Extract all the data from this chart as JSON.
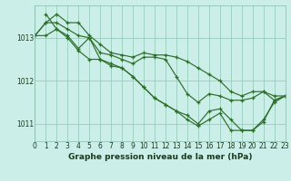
{
  "title": "Graphe pression niveau de la mer (hPa)",
  "bg_color": "#cceee8",
  "grid_color": "#99ccbb",
  "line_color": "#2d6e2d",
  "xlim": [
    0,
    23
  ],
  "ylim": [
    1010.6,
    1013.75
  ],
  "yticks": [
    1011,
    1012,
    1013
  ],
  "xticks": [
    0,
    1,
    2,
    3,
    4,
    5,
    6,
    7,
    8,
    9,
    10,
    11,
    12,
    13,
    14,
    15,
    16,
    17,
    18,
    19,
    20,
    21,
    22,
    23
  ],
  "lines": [
    {
      "x": [
        0,
        1,
        2,
        3,
        4,
        5,
        6,
        7,
        8,
        9,
        10,
        11,
        12,
        13,
        14,
        15,
        16,
        17,
        18,
        19,
        20,
        21,
        22,
        23
      ],
      "y": [
        1013.05,
        1013.35,
        1013.55,
        1013.35,
        1013.35,
        1013.05,
        1012.85,
        1012.65,
        1012.6,
        1012.55,
        1012.65,
        1012.6,
        1012.6,
        1012.55,
        1012.45,
        1012.3,
        1012.15,
        1012.0,
        1011.75,
        1011.65,
        1011.75,
        1011.75,
        1011.55,
        1011.65
      ]
    },
    {
      "x": [
        0,
        1,
        2,
        3,
        4,
        5,
        6,
        7,
        8,
        9,
        10,
        11,
        12,
        13,
        14,
        15,
        16,
        17,
        18,
        19,
        20,
        21,
        22,
        23
      ],
      "y": [
        1013.05,
        1013.35,
        1013.35,
        1013.2,
        1013.05,
        1013.0,
        1012.65,
        1012.6,
        1012.5,
        1012.4,
        1012.55,
        1012.55,
        1012.5,
        1012.1,
        1011.7,
        1011.5,
        1011.7,
        1011.65,
        1011.55,
        1011.55,
        1011.6,
        1011.75,
        1011.65,
        1011.65
      ]
    },
    {
      "x": [
        0,
        1,
        2,
        3,
        4,
        5,
        6,
        7,
        8,
        9,
        10,
        11,
        12,
        13,
        14,
        15,
        16,
        17,
        18,
        19,
        20,
        21,
        22,
        23
      ],
      "y": [
        1013.05,
        1013.05,
        1013.2,
        1013.0,
        1012.7,
        1012.5,
        1012.5,
        1012.4,
        1012.3,
        1012.1,
        1011.85,
        1011.6,
        1011.45,
        1011.3,
        1011.2,
        1011.0,
        1011.3,
        1011.35,
        1011.1,
        1010.85,
        1010.85,
        1011.05,
        1011.55,
        1011.65
      ]
    },
    {
      "x": [
        1,
        2,
        3,
        4,
        5,
        6,
        7,
        8,
        9,
        10,
        11,
        12,
        13,
        14,
        15,
        16,
        17,
        18,
        19,
        20,
        21,
        22,
        23
      ],
      "y": [
        1013.55,
        1013.2,
        1013.05,
        1012.75,
        1013.0,
        1012.5,
        1012.35,
        1012.3,
        1012.1,
        1011.85,
        1011.6,
        1011.45,
        1011.3,
        1011.1,
        1010.95,
        1011.1,
        1011.25,
        1010.85,
        1010.85,
        1010.85,
        1011.1,
        1011.5,
        1011.65
      ]
    }
  ]
}
